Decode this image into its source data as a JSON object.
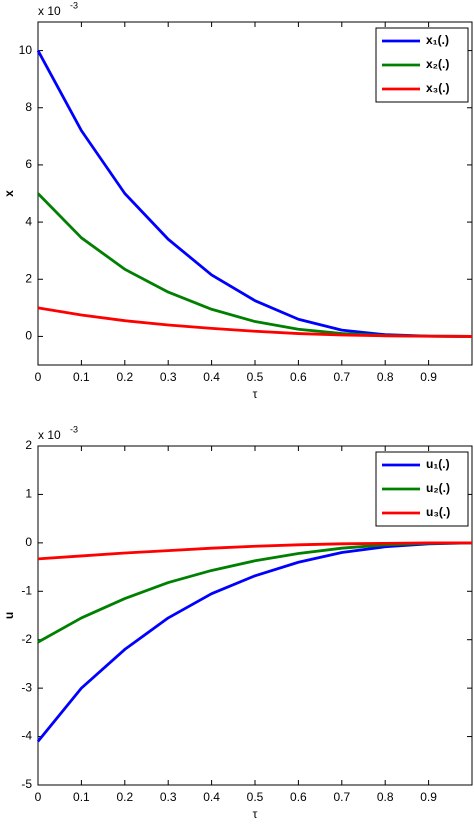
{
  "chart_data": [
    {
      "type": "line",
      "xlabel": "τ",
      "ylabel": "x",
      "y_multiplier": "x 10",
      "y_exponent": "-3",
      "x": [
        0,
        0.1,
        0.2,
        0.3,
        0.4,
        0.5,
        0.6,
        0.7,
        0.8,
        0.9,
        1.0
      ],
      "series": [
        {
          "name": "x₁(.)",
          "color": "#0000ff",
          "values": [
            10,
            7.2,
            5.0,
            3.4,
            2.15,
            1.25,
            0.6,
            0.22,
            0.06,
            0.01,
            0
          ]
        },
        {
          "name": "x₂(.)",
          "color": "#008000",
          "values": [
            5,
            3.45,
            2.35,
            1.55,
            0.95,
            0.52,
            0.25,
            0.1,
            0.03,
            0.01,
            0
          ]
        },
        {
          "name": "x₃(.)",
          "color": "#ff0000",
          "values": [
            1,
            0.75,
            0.55,
            0.4,
            0.28,
            0.18,
            0.1,
            0.05,
            0.02,
            0.005,
            0
          ]
        }
      ],
      "xlim": [
        0,
        1
      ],
      "xticks": [
        0,
        0.1,
        0.2,
        0.3,
        0.4,
        0.5,
        0.6,
        0.7,
        0.8,
        0.9
      ],
      "ylim": [
        -1,
        11
      ],
      "yticks": [
        0,
        2,
        4,
        6,
        8,
        10
      ],
      "legend": "upper right"
    },
    {
      "type": "line",
      "xlabel": "τ",
      "ylabel": "u",
      "y_multiplier": "x 10",
      "y_exponent": "-3",
      "x": [
        0,
        0.1,
        0.2,
        0.3,
        0.4,
        0.5,
        0.6,
        0.7,
        0.8,
        0.9,
        1.0
      ],
      "series": [
        {
          "name": "u₁(.)",
          "color": "#0000ff",
          "values": [
            -4.1,
            -3.0,
            -2.2,
            -1.55,
            -1.05,
            -0.68,
            -0.4,
            -0.2,
            -0.08,
            -0.02,
            0
          ]
        },
        {
          "name": "u₂(.)",
          "color": "#008000",
          "values": [
            -2.05,
            -1.55,
            -1.15,
            -0.82,
            -0.57,
            -0.37,
            -0.22,
            -0.11,
            -0.04,
            -0.01,
            0
          ]
        },
        {
          "name": "u₃(.)",
          "color": "#ff0000",
          "values": [
            -0.33,
            -0.27,
            -0.21,
            -0.16,
            -0.11,
            -0.07,
            -0.04,
            -0.02,
            -0.01,
            0,
            0
          ]
        }
      ],
      "xlim": [
        0,
        1
      ],
      "xticks": [
        0,
        0.1,
        0.2,
        0.3,
        0.4,
        0.5,
        0.6,
        0.7,
        0.8,
        0.9
      ],
      "ylim": [
        -5,
        2
      ],
      "yticks": [
        -5,
        -4,
        -3,
        -2,
        -1,
        0,
        1,
        2
      ],
      "legend": "upper right"
    }
  ]
}
